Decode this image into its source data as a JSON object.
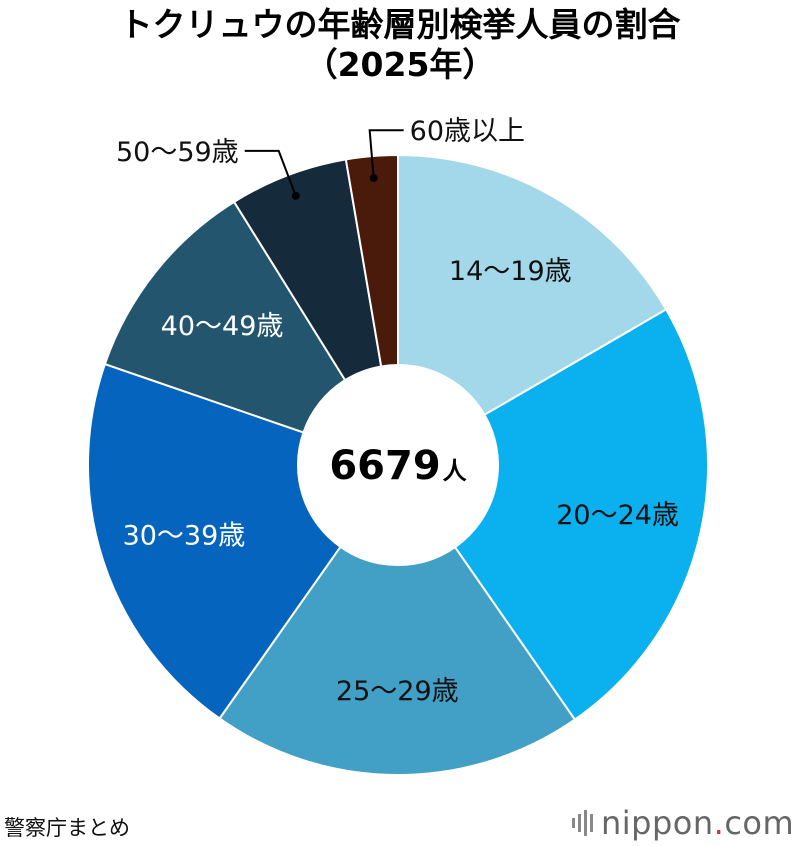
{
  "title_line1": "トクリュウの年齢層別検挙人員の割合",
  "title_line2": "（2025年）",
  "center_label": {
    "number": "6679",
    "unit": "人"
  },
  "source": "警察庁まとめ",
  "logo": {
    "name": "nippon",
    "dot": ".",
    "tld": "com"
  },
  "chart_data": {
    "type": "pie",
    "donut": true,
    "total": 6679,
    "categories": [
      "14〜19歳",
      "20〜24歳",
      "25〜29歳",
      "30〜39歳",
      "40〜49歳",
      "50〜59歳",
      "60歳以上"
    ],
    "values": [
      16.7,
      23.8,
      19.5,
      20.6,
      10.9,
      6.2,
      2.7
    ],
    "colors": [
      "#a3d8ea",
      "#0bb0ef",
      "#42a0c6",
      "#0564be",
      "#23556f",
      "#152a3a",
      "#4a1a0b"
    ],
    "label_colors": [
      "#111111",
      "#111111",
      "#111111",
      "#ffffff",
      "#ffffff",
      "#111111",
      "#111111"
    ],
    "label_placement": [
      "inside",
      "inside",
      "inside",
      "inside",
      "inside",
      "outside-left",
      "outside-right"
    ]
  }
}
